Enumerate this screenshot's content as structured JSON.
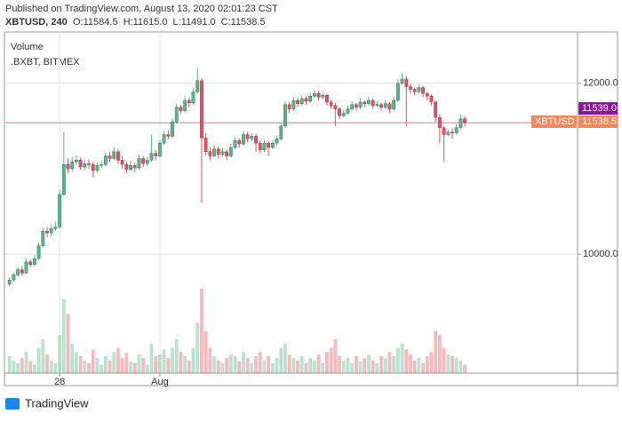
{
  "chart_data": {
    "type": "candlestick",
    "header": "Published on TradingView.com, August 13, 2020 02:01:23 CST",
    "symbol": "XBTUSD, 240",
    "ohlc_legend": [
      "O:11584.5",
      "H:11615.0",
      "L:11491.0",
      "C:11538.5"
    ],
    "studies": [
      "Volume",
      ".BXBT, BITMEX"
    ],
    "brand": "TradingView",
    "up_color": "#53b987",
    "down_color": "#eb4d5c",
    "xlim": [
      -1,
      136
    ],
    "xticks": [
      {
        "value": 12,
        "label": "28"
      },
      {
        "value": 36,
        "label": "Aug"
      }
    ],
    "ylim": [
      8610,
      12600
    ],
    "yticks": [
      {
        "value": 10000,
        "label": "10000.0"
      },
      {
        "value": 12000,
        "label": "12000.0"
      }
    ],
    "grid": true,
    "price_tags": [
      {
        "value": 11539,
        "label": "11539.0",
        "color": "#8e1599"
      },
      {
        "name": "XBTUSD",
        "value": 11538.5,
        "color": "#f08a5d"
      }
    ],
    "ohlc": [
      [
        9650,
        9730,
        9620,
        9700
      ],
      [
        9700,
        9790,
        9680,
        9760
      ],
      [
        9760,
        9850,
        9740,
        9820
      ],
      [
        9820,
        9860,
        9750,
        9780
      ],
      [
        9780,
        9950,
        9770,
        9910
      ],
      [
        9910,
        9940,
        9850,
        9880
      ],
      [
        9880,
        9990,
        9860,
        9950
      ],
      [
        9950,
        10140,
        9930,
        10100
      ],
      [
        10100,
        10310,
        10080,
        10270
      ],
      [
        10270,
        10320,
        10200,
        10250
      ],
      [
        10250,
        10340,
        10220,
        10300
      ],
      [
        10300,
        10380,
        10270,
        10320
      ],
      [
        10320,
        10760,
        10300,
        10700
      ],
      [
        10700,
        11430,
        10680,
        11050
      ],
      [
        11050,
        11120,
        10950,
        11000
      ],
      [
        11000,
        11140,
        10970,
        11080
      ],
      [
        11080,
        11160,
        11040,
        11100
      ],
      [
        11100,
        11130,
        10990,
        11020
      ],
      [
        11020,
        11100,
        10980,
        11060
      ],
      [
        11060,
        11110,
        11000,
        11050
      ],
      [
        11050,
        11080,
        10900,
        10980
      ],
      [
        10980,
        11070,
        10950,
        11040
      ],
      [
        11040,
        11100,
        11010,
        11050
      ],
      [
        11050,
        11190,
        11030,
        11150
      ],
      [
        11150,
        11200,
        11080,
        11120
      ],
      [
        11120,
        11250,
        11100,
        11200
      ],
      [
        11200,
        11230,
        11060,
        11100
      ],
      [
        11100,
        11150,
        11000,
        11050
      ],
      [
        11050,
        11080,
        10950,
        10990
      ],
      [
        10990,
        11090,
        10970,
        11040
      ],
      [
        11040,
        11070,
        10960,
        11010
      ],
      [
        11010,
        11170,
        10990,
        11120
      ],
      [
        11120,
        11150,
        11020,
        11060
      ],
      [
        11060,
        11140,
        11030,
        11100
      ],
      [
        11100,
        11400,
        11080,
        11180
      ],
      [
        11180,
        11220,
        11100,
        11150
      ],
      [
        11150,
        11340,
        11130,
        11300
      ],
      [
        11300,
        11440,
        11280,
        11400
      ],
      [
        11400,
        11450,
        11340,
        11380
      ],
      [
        11380,
        11590,
        11360,
        11550
      ],
      [
        11550,
        11760,
        11530,
        11720
      ],
      [
        11720,
        11750,
        11640,
        11680
      ],
      [
        11680,
        11850,
        11660,
        11800
      ],
      [
        11800,
        11830,
        11720,
        11770
      ],
      [
        11770,
        11950,
        11750,
        11900
      ],
      [
        11900,
        12180,
        11880,
        12030
      ],
      [
        12030,
        12060,
        10600,
        11360
      ],
      [
        11360,
        11420,
        11150,
        11200
      ],
      [
        11200,
        11250,
        11100,
        11150
      ],
      [
        11150,
        11280,
        11130,
        11230
      ],
      [
        11230,
        11260,
        11120,
        11170
      ],
      [
        11170,
        11240,
        11140,
        11200
      ],
      [
        11200,
        11230,
        11100,
        11150
      ],
      [
        11150,
        11290,
        11130,
        11250
      ],
      [
        11250,
        11370,
        11230,
        11330
      ],
      [
        11330,
        11360,
        11250,
        11290
      ],
      [
        11290,
        11440,
        11270,
        11400
      ],
      [
        11400,
        11430,
        11310,
        11350
      ],
      [
        11350,
        11420,
        11320,
        11380
      ],
      [
        11380,
        11410,
        11200,
        11300
      ],
      [
        11300,
        11330,
        11180,
        11220
      ],
      [
        11220,
        11340,
        11200,
        11300
      ],
      [
        11300,
        11330,
        11150,
        11250
      ],
      [
        11250,
        11340,
        11230,
        11300
      ],
      [
        11300,
        11390,
        11280,
        11350
      ],
      [
        11350,
        11540,
        11330,
        11500
      ],
      [
        11500,
        11790,
        11480,
        11750
      ],
      [
        11750,
        11780,
        11650,
        11700
      ],
      [
        11700,
        11840,
        11680,
        11800
      ],
      [
        11800,
        11830,
        11720,
        11760
      ],
      [
        11760,
        11860,
        11740,
        11820
      ],
      [
        11820,
        11850,
        11750,
        11790
      ],
      [
        11790,
        11890,
        11770,
        11850
      ],
      [
        11850,
        11920,
        11830,
        11880
      ],
      [
        11880,
        11910,
        11800,
        11840
      ],
      [
        11840,
        11900,
        11810,
        11860
      ],
      [
        11860,
        11880,
        11740,
        11780
      ],
      [
        11780,
        11810,
        11700,
        11740
      ],
      [
        11740,
        11770,
        11500,
        11700
      ],
      [
        11700,
        11720,
        11580,
        11620
      ],
      [
        11620,
        11690,
        11600,
        11650
      ],
      [
        11650,
        11740,
        11630,
        11700
      ],
      [
        11700,
        11790,
        11680,
        11750
      ],
      [
        11750,
        11770,
        11680,
        11720
      ],
      [
        11720,
        11820,
        11700,
        11780
      ],
      [
        11780,
        11800,
        11720,
        11760
      ],
      [
        11760,
        11840,
        11740,
        11800
      ],
      [
        11800,
        11820,
        11700,
        11740
      ],
      [
        11740,
        11790,
        11720,
        11750
      ],
      [
        11750,
        11770,
        11680,
        11720
      ],
      [
        11720,
        11800,
        11700,
        11760
      ],
      [
        11760,
        11780,
        11650,
        11700
      ],
      [
        11700,
        11840,
        11680,
        11800
      ],
      [
        11800,
        12050,
        11780,
        12000
      ],
      [
        12000,
        12120,
        11980,
        12050
      ],
      [
        12050,
        12080,
        11500,
        11960
      ],
      [
        11960,
        11990,
        11880,
        11930
      ],
      [
        11930,
        11950,
        11860,
        11900
      ],
      [
        11900,
        11990,
        11880,
        11950
      ],
      [
        11950,
        11970,
        11840,
        11880
      ],
      [
        11880,
        11900,
        11800,
        11850
      ],
      [
        11850,
        11870,
        11740,
        11780
      ],
      [
        11780,
        11800,
        11550,
        11600
      ],
      [
        11600,
        11640,
        11300,
        11480
      ],
      [
        11480,
        11500,
        11080,
        11400
      ],
      [
        11400,
        11460,
        11380,
        11430
      ],
      [
        11430,
        11470,
        11350,
        11420
      ],
      [
        11420,
        11520,
        11400,
        11480
      ],
      [
        11480,
        11640,
        11460,
        11584.5
      ],
      [
        11584.5,
        11615,
        11491,
        11538.5
      ]
    ],
    "volume": [
      20,
      15,
      12,
      18,
      25,
      14,
      10,
      30,
      40,
      22,
      15,
      12,
      45,
      88,
      70,
      35,
      25,
      20,
      15,
      12,
      28,
      18,
      10,
      20,
      15,
      25,
      30,
      18,
      24,
      14,
      12,
      22,
      18,
      10,
      35,
      20,
      22,
      28,
      18,
      30,
      40,
      25,
      20,
      15,
      30,
      60,
      100,
      50,
      30,
      20,
      15,
      12,
      18,
      22,
      20,
      14,
      25,
      18,
      12,
      20,
      25,
      15,
      20,
      12,
      18,
      30,
      35,
      22,
      18,
      15,
      20,
      12,
      18,
      15,
      22,
      12,
      25,
      30,
      40,
      20,
      15,
      18,
      12,
      20,
      14,
      18,
      22,
      15,
      12,
      20,
      18,
      25,
      20,
      30,
      35,
      28,
      22,
      15,
      18,
      12,
      20,
      25,
      50,
      45,
      30,
      22,
      20,
      18,
      15,
      10
    ]
  }
}
